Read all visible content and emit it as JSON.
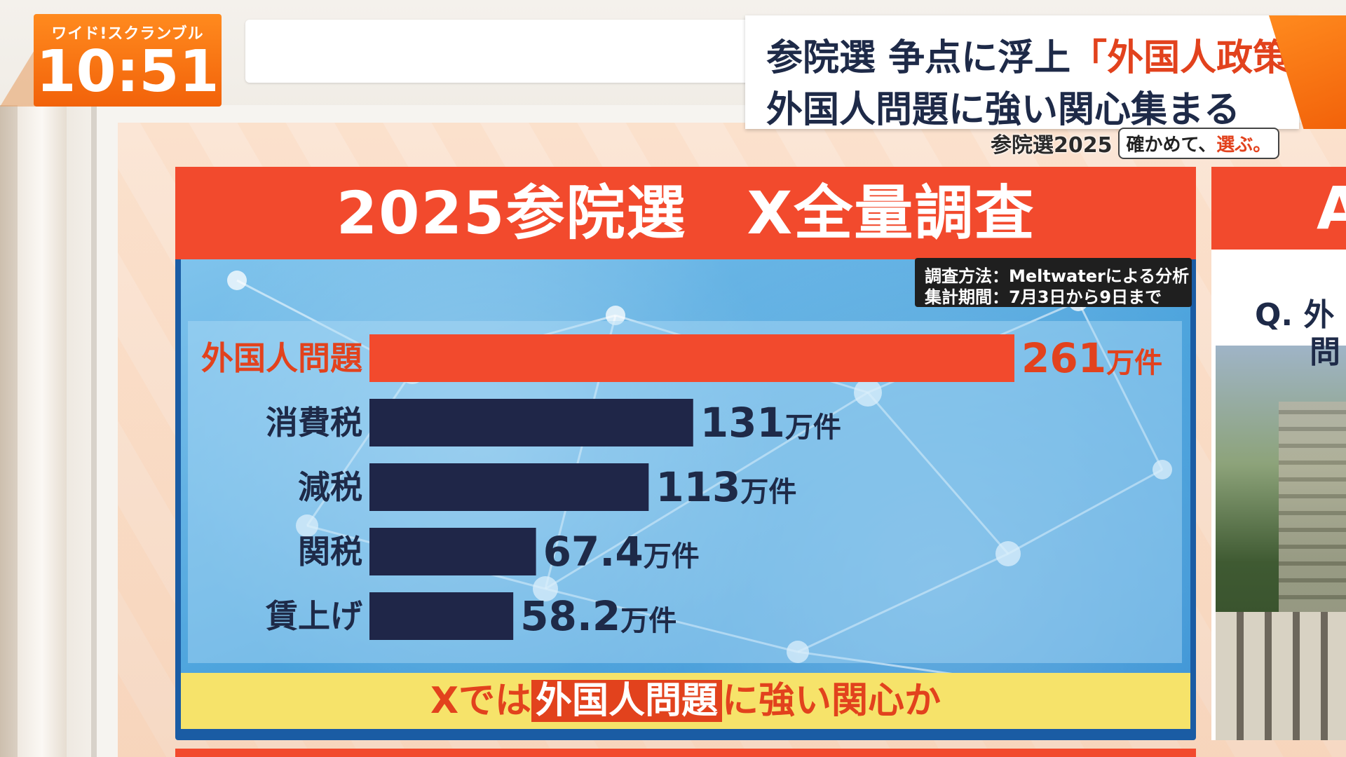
{
  "broadcast": {
    "show_name": "ワイド!スクランブル",
    "time": "10:51",
    "headline_line1_prefix": "参院選 争点に浮上",
    "headline_line1_accent": "「外国人政策」",
    "headline_line2": "外国人問題に強い関心集まる",
    "tag_sub": "参院選2025",
    "tag_pill_prefix": "確かめて、",
    "tag_pill_accent": "選ぶ。"
  },
  "panel": {
    "title": "2025参院選　X全量調査",
    "method_line1": "調査方法：Meltwaterによる分析",
    "method_line2": "集計期間：7月3日から9日まで",
    "footer_prefix": "Xでは",
    "footer_highlight": "外国人問題",
    "footer_suffix": "に強い関心か"
  },
  "right_panel": {
    "title_partial": "A",
    "question_line1": "Q. 外",
    "question_line2": "問"
  },
  "chart_data": {
    "type": "bar",
    "orientation": "horizontal",
    "title": "2025参院選　X全量調査",
    "categories": [
      "外国人問題",
      "消費税",
      "減税",
      "関税",
      "賃上げ"
    ],
    "values": [
      261,
      131,
      113,
      67.4,
      58.2
    ],
    "value_labels": [
      "261",
      "131",
      "113",
      "67.4",
      "58.2"
    ],
    "unit": "万件",
    "highlight_index": 0,
    "colors": {
      "highlight": "#f24a2d",
      "default": "#1f2648",
      "label_highlight": "#e2421d",
      "label_default": "#1e2a48"
    }
  }
}
